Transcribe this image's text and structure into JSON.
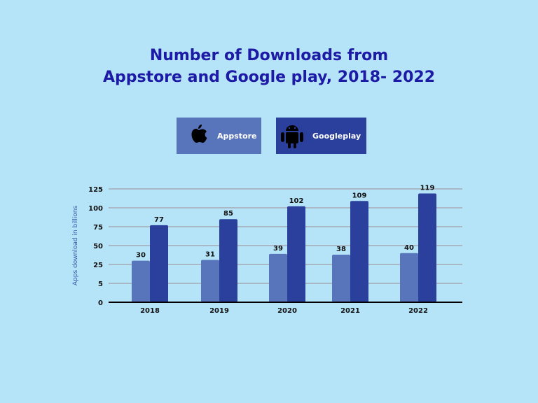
{
  "title_line1": "Number of Downloads from",
  "title_line2": "Appstore and Google play, 2018- 2022",
  "legend": [
    {
      "label": "Appstore",
      "icon": "apple-icon",
      "color": "#5874ba"
    },
    {
      "label": "Googleplay",
      "icon": "android-icon",
      "color": "#2b3f9c"
    }
  ],
  "chart_data": {
    "type": "bar",
    "title": "Number of Downloads from Appstore and Google play, 2018- 2022",
    "ylabel": "Apps download in billions",
    "xlabel": "",
    "categories": [
      "2018",
      "2019",
      "2020",
      "2021",
      "2022"
    ],
    "yticks": [
      0,
      5,
      25,
      50,
      75,
      100,
      125
    ],
    "ylim": [
      0,
      125
    ],
    "grid": true,
    "legend_position": "top",
    "series": [
      {
        "name": "Appstore",
        "color": "#5874ba",
        "values": [
          30,
          31,
          39,
          38,
          40
        ]
      },
      {
        "name": "Googleplay",
        "color": "#2b3f9c",
        "values": [
          77,
          85,
          102,
          109,
          119
        ]
      }
    ]
  }
}
